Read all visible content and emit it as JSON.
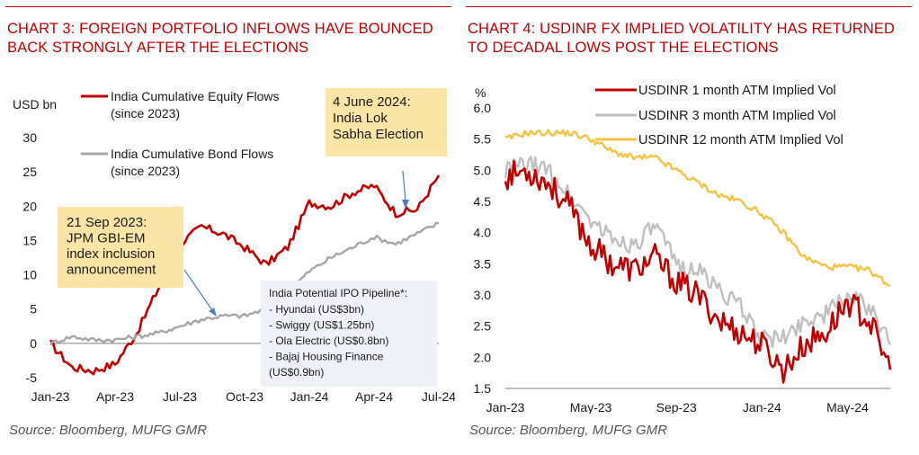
{
  "colors": {
    "title_red": "#c00000",
    "equity": "#c00000",
    "bond": "#a6a6a6",
    "vol_1m": "#c00000",
    "vol_3m": "#bfbfbf",
    "vol_12m": "#f5c242",
    "callout_bg": "#fbe5a6",
    "ipo_box_bg": "#eef1f8",
    "arrow": "#4a7fc1"
  },
  "charts": [
    {
      "title": "CHART 3: FOREIGN PORTFOLIO INFLOWS HAVE BOUNCED BACK STRONGLY AFTER THE ELECTIONS",
      "source": "Source: Bloomberg, MUFG GMR"
    },
    {
      "title": "CHART 4: USDINR FX IMPLIED VOLATILITY HAS RETURNED TO DECADAL LOWS POST THE ELECTIONS",
      "source": "Source: Bloomberg, MUFG GMR"
    }
  ],
  "chart_data": [
    {
      "type": "line",
      "ylabel": "USD bn",
      "ylim": [
        -5,
        30
      ],
      "yticks": [
        "30",
        "25",
        "20",
        "15",
        "10",
        "5",
        "0",
        "-5"
      ],
      "xticks": [
        "Jan-23",
        "Apr-23",
        "Jul-23",
        "Oct-23",
        "Jan-24",
        "Apr-24",
        "Jul-24"
      ],
      "grid": false,
      "legend_position": "top-left",
      "x": [
        "2023-01",
        "2023-02",
        "2023-03",
        "2023-04",
        "2023-05",
        "2023-06",
        "2023-07",
        "2023-08",
        "2023-09",
        "2023-10",
        "2023-11",
        "2023-12",
        "2024-01",
        "2024-02",
        "2024-03",
        "2024-04",
        "2024-05",
        "2024-06",
        "2024-07"
      ],
      "series": [
        {
          "name": "India Cumulative Equity Flows (since 2023)",
          "values": [
            0,
            -3.5,
            -4.0,
            -3.0,
            1.5,
            8.0,
            14.5,
            17.0,
            16.0,
            14.0,
            11.5,
            14.0,
            20.5,
            20.0,
            22.0,
            23.0,
            19.0,
            19.5,
            24.5
          ]
        },
        {
          "name": "India Cumulative Bond Flows (since 2023)",
          "values": [
            0,
            1.0,
            0.5,
            0.5,
            1.0,
            1.5,
            2.5,
            3.5,
            4.0,
            4.0,
            5.0,
            7.5,
            10.5,
            12.5,
            14.0,
            15.5,
            14.5,
            16.0,
            17.5
          ]
        }
      ],
      "annotations": [
        "21 Sep 2023: JPM GBI-EM index inclusion announcement",
        "4 June 2024: India Lok Sabha Election"
      ],
      "text_box": {
        "heading": "India Potential IPO Pipeline*:",
        "items": [
          "- Hyundai (US$3bn)",
          "- Swiggy (US$1.25bn)",
          "- Ola Electric (US$0.8bn)",
          "- Bajaj Housing Finance",
          "(US$0.9bn)"
        ]
      }
    },
    {
      "type": "line",
      "ylabel": "%",
      "ylim": [
        1.5,
        6.0
      ],
      "yticks": [
        "6.0",
        "5.5",
        "5.0",
        "4.5",
        "4.0",
        "3.5",
        "3.0",
        "2.5",
        "2.0",
        "1.5"
      ],
      "xticks": [
        "Jan-23",
        "May-23",
        "Sep-23",
        "Jan-24",
        "May-24"
      ],
      "grid": false,
      "legend_position": "top-right",
      "x": [
        "2023-01",
        "2023-02",
        "2023-03",
        "2023-04",
        "2023-05",
        "2023-06",
        "2023-07",
        "2023-08",
        "2023-09",
        "2023-10",
        "2023-11",
        "2023-12",
        "2024-01",
        "2024-02",
        "2024-03",
        "2024-04",
        "2024-05",
        "2024-06",
        "2024-07"
      ],
      "series": [
        {
          "name": "USDINR 1 month ATM Implied Vol",
          "values": [
            4.9,
            5.0,
            4.8,
            4.4,
            3.8,
            3.5,
            3.4,
            3.6,
            3.2,
            3.0,
            2.6,
            2.4,
            2.2,
            1.8,
            2.2,
            2.4,
            2.9,
            2.6,
            1.8
          ]
        },
        {
          "name": "USDINR 3 month ATM Implied Vol",
          "values": [
            5.0,
            5.1,
            5.0,
            4.6,
            4.2,
            3.9,
            3.8,
            4.1,
            3.5,
            3.4,
            3.1,
            2.8,
            2.3,
            2.3,
            2.6,
            2.7,
            3.0,
            2.8,
            2.2
          ]
        },
        {
          "name": "USDINR 12 month ATM Implied Vol",
          "values": [
            5.5,
            5.6,
            5.6,
            5.6,
            5.5,
            5.3,
            5.2,
            5.2,
            5.0,
            4.8,
            4.6,
            4.5,
            4.3,
            4.0,
            3.6,
            3.45,
            3.45,
            3.4,
            3.15
          ]
        }
      ]
    }
  ]
}
